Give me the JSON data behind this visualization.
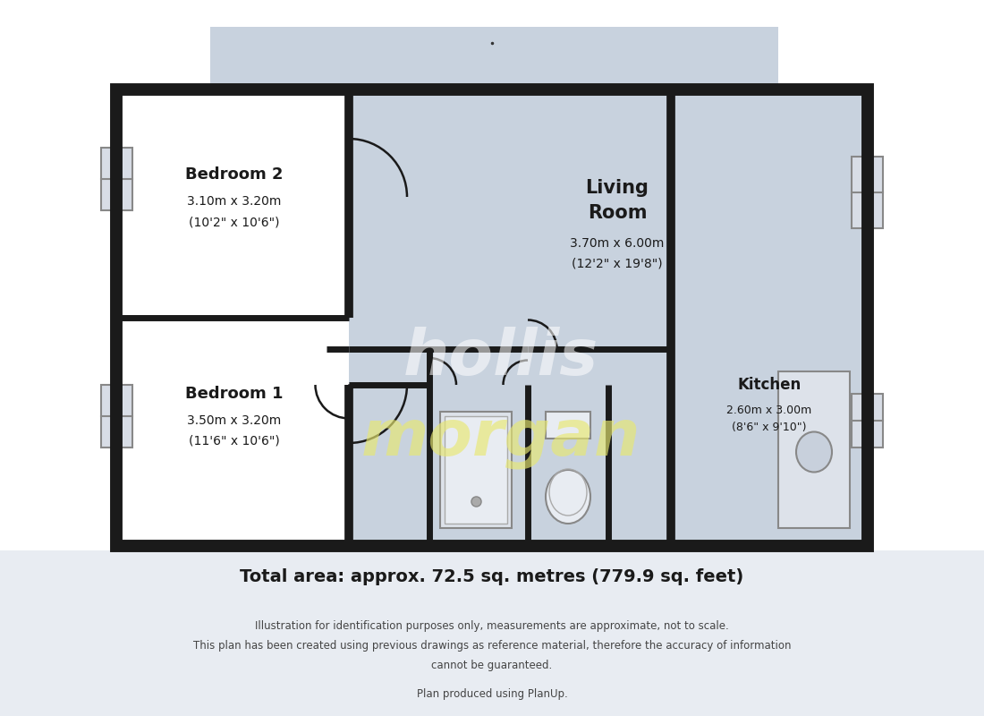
{
  "bg_color": "#ffffff",
  "floor_color": "#c8d2de",
  "wall_color": "#1a1a1a",
  "title": "Total area: approx. 72.5 sq. metres (779.9 sq. feet)",
  "disclaimer1": "Illustration for identification purposes only, measurements are approximate, not to scale.",
  "disclaimer2": "This plan has been created using previous drawings as reference material, therefore the accuracy of information",
  "disclaimer3": "cannot be guaranteed.",
  "disclaimer4": "Plan produced using PlanUp.",
  "watermark1": "hollis",
  "watermark2": "morgan",
  "rooms": {
    "bedroom2": {
      "label": "Bedroom 2",
      "sub1": "3.10m x 3.20m",
      "sub2": "(10'2\" x 10'6\")"
    },
    "bedroom1": {
      "label": "Bedroom 1",
      "sub1": "3.50m x 3.20m",
      "sub2": "(11'6\" x 10'6\")"
    },
    "living": {
      "label1": "Living",
      "label2": "Room",
      "sub1": "3.70m x 6.00m",
      "sub2": "(12'2\" x 19'8\")"
    },
    "kitchen": {
      "label": "Kitchen",
      "sub1": "2.60m x 3.00m",
      "sub2": "(8'6\" x 9'10\")"
    }
  }
}
